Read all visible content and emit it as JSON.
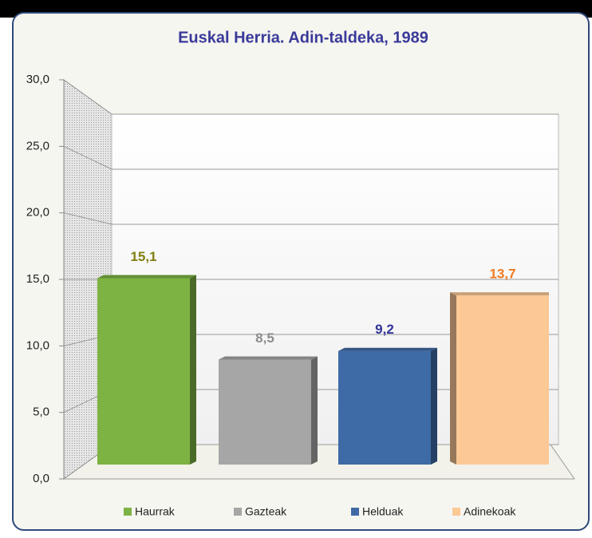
{
  "chart_data": {
    "type": "bar3d",
    "title": "Euskal Herria. Adin-taldeka, 1989",
    "categories": [
      "Haurrak",
      "Gazteak",
      "Helduak",
      "Adinekoak"
    ],
    "values": [
      15.1,
      8.5,
      9.2,
      13.7
    ],
    "value_labels": [
      "15,1",
      "8,5",
      "9,2",
      "13,7"
    ],
    "colors": [
      "#7cb342",
      "#a6a6a6",
      "#3e6aa6",
      "#fcc896"
    ],
    "label_colors": [
      "#7f7f10",
      "#8c8c8c",
      "#33339a",
      "#f07a22"
    ],
    "ylim": [
      0,
      30
    ],
    "yticks": [
      {
        "value": 0,
        "label": "0,0"
      },
      {
        "value": 5,
        "label": "5,0"
      },
      {
        "value": 10,
        "label": "10,0"
      },
      {
        "value": 15,
        "label": "15,0"
      },
      {
        "value": 20,
        "label": "20,0"
      },
      {
        "value": 25,
        "label": "25,0"
      },
      {
        "value": 30,
        "label": "30,0"
      }
    ],
    "grid": true,
    "legend": "bottom"
  }
}
